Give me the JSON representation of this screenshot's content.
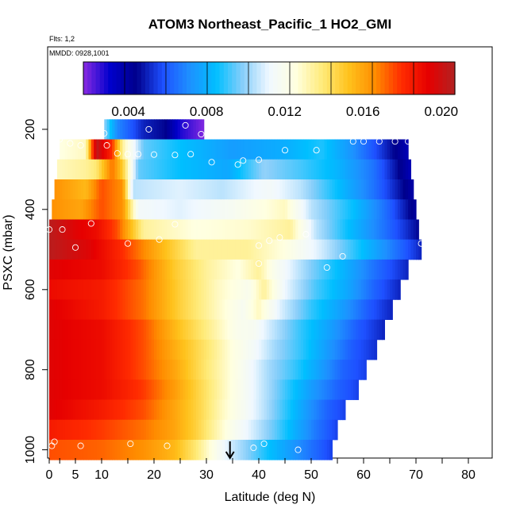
{
  "chart_data": {
    "type": "heatmap",
    "title": "ATOM3 Northeast_Pacific_1 HO2_GMI",
    "flights_label": "Flts: 1,2",
    "dates_label": "MMDD: 0928,1001",
    "xlabel": "Latitude (deg N)",
    "ylabel": "PSXC (mbar)",
    "xlim": [
      0,
      85
    ],
    "ylim": [
      1010,
      0
    ],
    "x_ticks": [
      0,
      2,
      5,
      10,
      20,
      30,
      40,
      50,
      60,
      70,
      80
    ],
    "x_tick_labels": [
      "0",
      "",
      "5",
      "10",
      "20",
      "30",
      "40",
      "50",
      "60",
      "70",
      "80"
    ],
    "x_minor_ticks": [
      15,
      25,
      35,
      45,
      55,
      65,
      75
    ],
    "y_ticks": [
      200,
      400,
      600,
      800,
      1000
    ],
    "y_tick_labels": [
      "200",
      "400",
      "600",
      "800",
      "1000"
    ],
    "colorbar": {
      "min": 0.0017,
      "max": 0.0207,
      "ticks": [
        0.004,
        0.008,
        0.012,
        0.016,
        0.02
      ],
      "tick_labels": [
        "0.004",
        "0.008",
        "0.012",
        "0.016",
        "0.020"
      ],
      "colors": [
        "#8a2be2",
        "#0000cd",
        "#00008b",
        "#1e50ff",
        "#1e90ff",
        "#00bfff",
        "#87cefa",
        "#f0f8ff",
        "#ffffe0",
        "#ffeb7a",
        "#ffc21c",
        "#ff8c00",
        "#ff2b00",
        "#e60000",
        "#b22222"
      ]
    },
    "pressure_levels": [
      {
        "p": 200,
        "lat_min": 10.5,
        "lat_max": 29.5,
        "nodes": [
          [
            10.5,
            0.01
          ],
          [
            13,
            0.007
          ],
          [
            18,
            0.005
          ],
          [
            22,
            0.0045
          ],
          [
            25,
            0.0028
          ],
          [
            29.5,
            0.0018
          ]
        ]
      },
      {
        "p": 250,
        "lat_min": 2.0,
        "lat_max": 68.5,
        "nodes": [
          [
            2,
            0.0125
          ],
          [
            7,
            0.013
          ],
          [
            9,
            0.0205
          ],
          [
            12,
            0.018
          ],
          [
            14,
            0.0135
          ],
          [
            18,
            0.0095
          ],
          [
            25,
            0.0085
          ],
          [
            35,
            0.0075
          ],
          [
            45,
            0.008
          ],
          [
            52,
            0.0088
          ],
          [
            58,
            0.0072
          ],
          [
            63,
            0.0055
          ],
          [
            68.5,
            0.0035
          ]
        ]
      },
      {
        "p": 300,
        "lat_min": 1.5,
        "lat_max": 69.0,
        "nodes": [
          [
            1.5,
            0.013
          ],
          [
            7,
            0.0135
          ],
          [
            9,
            0.014
          ],
          [
            12,
            0.017
          ],
          [
            14,
            0.015
          ],
          [
            17,
            0.0095
          ],
          [
            25,
            0.0085
          ],
          [
            34,
            0.0078
          ],
          [
            41,
            0.01
          ],
          [
            48,
            0.0092
          ],
          [
            55,
            0.0082
          ],
          [
            62,
            0.0065
          ],
          [
            69,
            0.0035
          ]
        ]
      },
      {
        "p": 350,
        "lat_min": 1.0,
        "lat_max": 69.5,
        "nodes": [
          [
            1,
            0.0165
          ],
          [
            7,
            0.0155
          ],
          [
            10,
            0.0175
          ],
          [
            14,
            0.0165
          ],
          [
            16,
            0.0105
          ],
          [
            25,
            0.011
          ],
          [
            33,
            0.0105
          ],
          [
            42,
            0.0115
          ],
          [
            48,
            0.0105
          ],
          [
            55,
            0.0085
          ],
          [
            62,
            0.0065
          ],
          [
            69.5,
            0.0038
          ]
        ]
      },
      {
        "p": 400,
        "lat_min": 0.5,
        "lat_max": 70.0,
        "nodes": [
          [
            0.5,
            0.0165
          ],
          [
            6,
            0.016
          ],
          [
            10,
            0.0175
          ],
          [
            14,
            0.0165
          ],
          [
            17,
            0.0115
          ],
          [
            25,
            0.011
          ],
          [
            35,
            0.0118
          ],
          [
            45,
            0.013
          ],
          [
            50,
            0.0105
          ],
          [
            58,
            0.0085
          ],
          [
            64,
            0.0065
          ],
          [
            70,
            0.004
          ]
        ]
      },
      {
        "p": 450,
        "lat_min": 0.0,
        "lat_max": 70.5,
        "nodes": [
          [
            0,
            0.0205
          ],
          [
            5,
            0.0195
          ],
          [
            9,
            0.019
          ],
          [
            13,
            0.0175
          ],
          [
            18,
            0.0135
          ],
          [
            28,
            0.0125
          ],
          [
            38,
            0.0128
          ],
          [
            46,
            0.0135
          ],
          [
            51,
            0.0105
          ],
          [
            58,
            0.0082
          ],
          [
            64,
            0.0065
          ],
          [
            70.5,
            0.0045
          ]
        ]
      },
      {
        "p": 500,
        "lat_min": 0.0,
        "lat_max": 71.0,
        "nodes": [
          [
            0,
            0.0205
          ],
          [
            8,
            0.0195
          ],
          [
            14,
            0.018
          ],
          [
            20,
            0.016
          ],
          [
            28,
            0.0135
          ],
          [
            38,
            0.0135
          ],
          [
            45,
            0.0125
          ],
          [
            52,
            0.0108
          ],
          [
            58,
            0.009
          ],
          [
            64,
            0.0072
          ],
          [
            71,
            0.005
          ]
        ]
      },
      {
        "p": 550,
        "lat_min": 0.0,
        "lat_max": 68.5,
        "nodes": [
          [
            0,
            0.0195
          ],
          [
            10,
            0.019
          ],
          [
            17,
            0.0175
          ],
          [
            24,
            0.015
          ],
          [
            30,
            0.0135
          ],
          [
            36,
            0.0125
          ],
          [
            40,
            0.0135
          ],
          [
            43,
            0.012
          ],
          [
            50,
            0.0098
          ],
          [
            56,
            0.0082
          ],
          [
            62,
            0.0065
          ],
          [
            68.5,
            0.005
          ]
        ]
      },
      {
        "p": 600,
        "lat_min": 0.0,
        "lat_max": 67.0,
        "nodes": [
          [
            0,
            0.019
          ],
          [
            10,
            0.0185
          ],
          [
            18,
            0.017
          ],
          [
            25,
            0.0148
          ],
          [
            32,
            0.013
          ],
          [
            38,
            0.012
          ],
          [
            41,
            0.0135
          ],
          [
            45,
            0.0112
          ],
          [
            51,
            0.0092
          ],
          [
            57,
            0.0078
          ],
          [
            62,
            0.0062
          ],
          [
            67,
            0.005
          ]
        ]
      },
      {
        "p": 650,
        "lat_min": 0.0,
        "lat_max": 65.5,
        "nodes": [
          [
            0,
            0.0195
          ],
          [
            10,
            0.0185
          ],
          [
            18,
            0.017
          ],
          [
            25,
            0.0148
          ],
          [
            32,
            0.013
          ],
          [
            37,
            0.0118
          ],
          [
            40,
            0.013
          ],
          [
            44,
            0.011
          ],
          [
            50,
            0.009
          ],
          [
            56,
            0.0075
          ],
          [
            61,
            0.006
          ],
          [
            65.5,
            0.005
          ]
        ]
      },
      {
        "p": 700,
        "lat_min": 0.0,
        "lat_max": 64.0,
        "nodes": [
          [
            0,
            0.0195
          ],
          [
            10,
            0.019
          ],
          [
            18,
            0.0175
          ],
          [
            25,
            0.0152
          ],
          [
            31,
            0.0135
          ],
          [
            36,
            0.012
          ],
          [
            39,
            0.0118
          ],
          [
            42,
            0.0108
          ],
          [
            48,
            0.009
          ],
          [
            54,
            0.0075
          ],
          [
            59,
            0.006
          ],
          [
            64,
            0.005
          ]
        ]
      },
      {
        "p": 750,
        "lat_min": 0.0,
        "lat_max": 62.5,
        "nodes": [
          [
            0,
            0.0195
          ],
          [
            10,
            0.019
          ],
          [
            18,
            0.0175
          ],
          [
            25,
            0.0155
          ],
          [
            31,
            0.0138
          ],
          [
            35,
            0.0125
          ],
          [
            39,
            0.0115
          ],
          [
            43,
            0.0102
          ],
          [
            48,
            0.009
          ],
          [
            53,
            0.0075
          ],
          [
            58,
            0.006
          ],
          [
            62.5,
            0.0052
          ]
        ]
      },
      {
        "p": 800,
        "lat_min": 0.0,
        "lat_max": 60.5,
        "nodes": [
          [
            0,
            0.0195
          ],
          [
            10,
            0.019
          ],
          [
            18,
            0.0175
          ],
          [
            24,
            0.016
          ],
          [
            30,
            0.014
          ],
          [
            35,
            0.0125
          ],
          [
            38,
            0.0115
          ],
          [
            42,
            0.0102
          ],
          [
            47,
            0.009
          ],
          [
            52,
            0.0075
          ],
          [
            56,
            0.0062
          ],
          [
            60.5,
            0.0055
          ]
        ]
      },
      {
        "p": 850,
        "lat_min": 0.0,
        "lat_max": 59.0,
        "nodes": [
          [
            0,
            0.0195
          ],
          [
            10,
            0.019
          ],
          [
            18,
            0.0178
          ],
          [
            24,
            0.0162
          ],
          [
            29,
            0.0145
          ],
          [
            34,
            0.0128
          ],
          [
            38,
            0.0115
          ],
          [
            42,
            0.0102
          ],
          [
            46,
            0.0088
          ],
          [
            50,
            0.0075
          ],
          [
            55,
            0.0062
          ],
          [
            59,
            0.0055
          ]
        ]
      },
      {
        "p": 900,
        "lat_min": 0.0,
        "lat_max": 56.5,
        "nodes": [
          [
            0,
            0.0195
          ],
          [
            10,
            0.0185
          ],
          [
            18,
            0.0175
          ],
          [
            24,
            0.016
          ],
          [
            29,
            0.0145
          ],
          [
            33,
            0.013
          ],
          [
            37,
            0.0118
          ],
          [
            41,
            0.0105
          ],
          [
            45,
            0.009
          ],
          [
            49,
            0.0075
          ],
          [
            53,
            0.0062
          ],
          [
            56.5,
            0.0055
          ]
        ]
      },
      {
        "p": 950,
        "lat_min": 0.0,
        "lat_max": 55.0,
        "nodes": [
          [
            0,
            0.0185
          ],
          [
            10,
            0.0178
          ],
          [
            18,
            0.017
          ],
          [
            24,
            0.016
          ],
          [
            28,
            0.0148
          ],
          [
            32,
            0.0132
          ],
          [
            35,
            0.012
          ],
          [
            39,
            0.0108
          ],
          [
            43,
            0.0095
          ],
          [
            47,
            0.008
          ],
          [
            51,
            0.0066
          ],
          [
            55,
            0.0055
          ]
        ]
      },
      {
        "p": 1000,
        "lat_min": 0.0,
        "lat_max": 54.0,
        "nodes": [
          [
            0,
            0.0175
          ],
          [
            10,
            0.0172
          ],
          [
            18,
            0.0165
          ],
          [
            24,
            0.0155
          ],
          [
            28,
            0.014
          ],
          [
            31,
            0.0125
          ],
          [
            34,
            0.011
          ],
          [
            38,
            0.0098
          ],
          [
            42,
            0.0085
          ],
          [
            46,
            0.0075
          ],
          [
            50,
            0.0065
          ],
          [
            54,
            0.0055
          ]
        ]
      }
    ],
    "observations": [
      [
        10.5,
        210
      ],
      [
        19,
        200
      ],
      [
        26,
        190
      ],
      [
        29,
        212
      ],
      [
        2,
        225
      ],
      [
        4,
        235
      ],
      [
        6,
        240
      ],
      [
        11,
        240
      ],
      [
        13,
        260
      ],
      [
        15,
        262
      ],
      [
        17,
        262
      ],
      [
        20,
        263
      ],
      [
        24,
        264
      ],
      [
        27,
        262
      ],
      [
        31,
        282
      ],
      [
        36,
        288
      ],
      [
        37,
        278
      ],
      [
        40,
        276
      ],
      [
        45,
        252
      ],
      [
        51,
        252
      ],
      [
        58,
        230
      ],
      [
        60,
        230
      ],
      [
        63,
        230
      ],
      [
        66,
        230
      ],
      [
        68.5,
        230
      ],
      [
        0,
        450
      ],
      [
        2.5,
        450
      ],
      [
        5,
        495
      ],
      [
        8,
        435
      ],
      [
        15,
        485
      ],
      [
        21,
        475
      ],
      [
        24,
        437
      ],
      [
        40,
        490
      ],
      [
        42,
        478
      ],
      [
        44,
        470
      ],
      [
        49,
        462
      ],
      [
        71,
        485
      ],
      [
        53,
        545
      ],
      [
        56,
        517
      ],
      [
        40,
        535
      ],
      [
        0.5,
        990
      ],
      [
        1,
        980
      ],
      [
        6,
        990
      ],
      [
        15.5,
        985
      ],
      [
        22.5,
        990
      ],
      [
        39,
        995
      ],
      [
        41,
        985
      ],
      [
        47.5,
        1000
      ]
    ],
    "arrow_latitude": 34.5
  }
}
